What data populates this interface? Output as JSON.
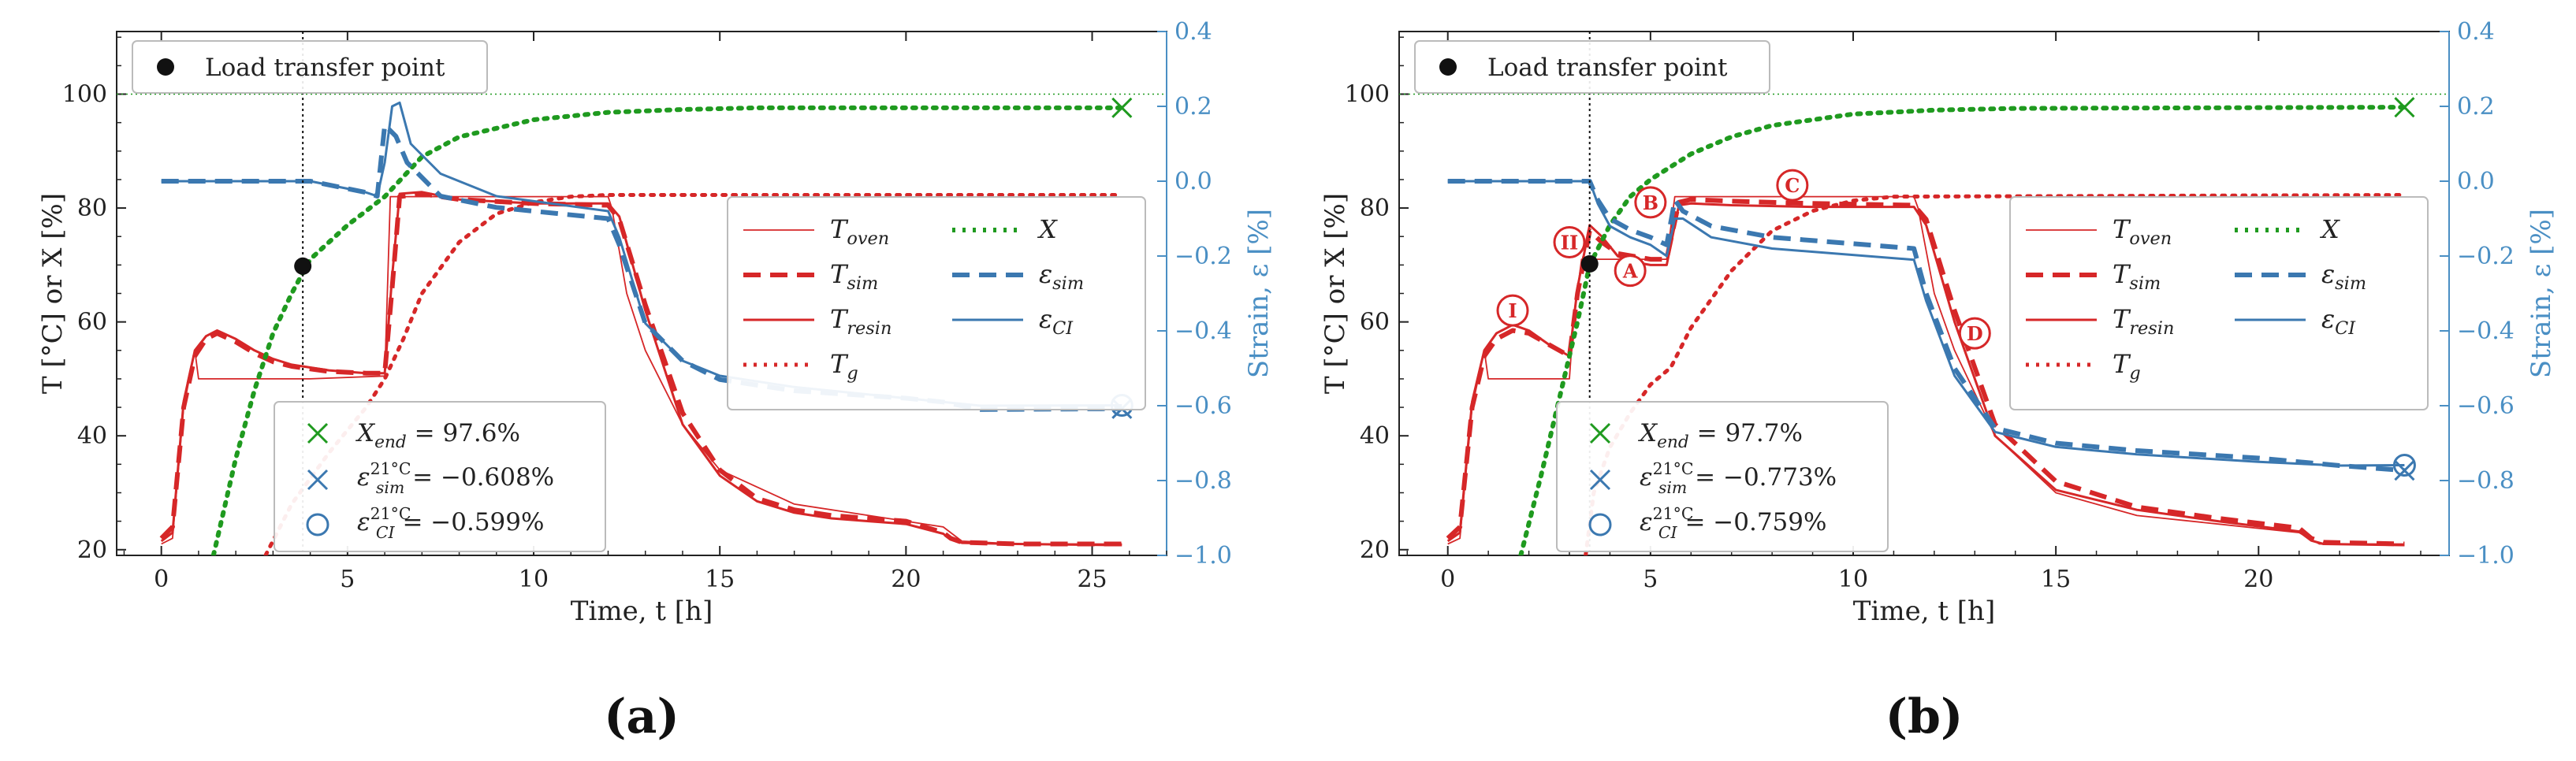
{
  "chart_data": [
    {
      "type": "line",
      "panel_label": "(a)",
      "xlabel": "Time, t [h]",
      "ylabel": "T [°C] or X [%]",
      "ylabel_right": "Strain, ε [%]",
      "xlim": [
        -1.2,
        27
      ],
      "ylim": [
        19,
        111
      ],
      "ylim_right": [
        -1.0,
        0.4
      ],
      "xticks": [
        "0",
        "5",
        "10",
        "15",
        "20",
        "25"
      ],
      "yticks": [
        "20",
        "40",
        "60",
        "80",
        "100"
      ],
      "yticks_right": [
        "−1.0",
        "−0.8",
        "−0.6",
        "−0.4",
        "−0.2",
        "0.0",
        "0.2",
        "0.4"
      ],
      "load_transfer_point": {
        "t": 3.8,
        "value": 69.8,
        "label": "Load transfer point"
      },
      "legend_right": {
        "T_oven": "T_oven",
        "T_sim": "T_sim",
        "T_resin": "T_resin",
        "T_g": "T_g",
        "X": "X",
        "eps_sim": "ε_sim",
        "eps_CI": "ε_CI"
      },
      "legend_bottom": {
        "X_end": "X_end = 97.6%",
        "eps_sim": "ε_sim^21°C = −0.608%",
        "eps_CI": "ε_CI^21°C = −0.599%"
      },
      "end_markers": {
        "X_end": 97.6,
        "eps_sim": -0.608,
        "eps_CI": -0.599,
        "t_end": 25.8
      },
      "series": [
        {
          "name": "T_oven",
          "axis": "left",
          "x": [
            0,
            0.3,
            0.6,
            0.9,
            1.0,
            2.0,
            4.0,
            6.0,
            6.15,
            6.3,
            8,
            10,
            12.0,
            12.1,
            12.5,
            13,
            14,
            15,
            17,
            20,
            21,
            21.5,
            23,
            25.8
          ],
          "y": [
            21,
            22,
            45,
            55,
            50,
            50,
            50,
            50.5,
            82,
            82,
            82,
            82,
            82,
            80,
            65,
            55,
            42,
            34,
            28,
            25,
            24,
            21.5,
            21,
            21
          ]
        },
        {
          "name": "T_sim",
          "axis": "left",
          "x": [
            0,
            0.3,
            0.6,
            0.9,
            1.2,
            1.5,
            2.0,
            2.5,
            3.0,
            3.5,
            4.5,
            5.5,
            6.0,
            6.2,
            6.4,
            7,
            8,
            10,
            12.0,
            12.3,
            13,
            14,
            15,
            16,
            17,
            18,
            19,
            20,
            21,
            21.2,
            21.5,
            23,
            25.8
          ],
          "y": [
            22,
            24,
            45,
            54,
            57,
            58,
            56.5,
            54.5,
            53,
            52.2,
            51.3,
            51,
            51,
            66,
            82,
            82.5,
            81.5,
            80.8,
            80.5,
            78,
            63,
            44,
            34,
            29,
            27,
            26,
            25.5,
            25,
            23,
            22,
            21.3,
            21,
            21
          ]
        },
        {
          "name": "T_resin",
          "axis": "left",
          "x": [
            0,
            0.3,
            0.6,
            0.9,
            1.2,
            1.5,
            2.0,
            2.5,
            3.0,
            3.5,
            4.5,
            5.5,
            6.0,
            6.2,
            6.4,
            7,
            8,
            10,
            12.0,
            12.3,
            13,
            14,
            15,
            16,
            17,
            18,
            19,
            20,
            21,
            21.2,
            21.5,
            23,
            25.8
          ],
          "y": [
            21.5,
            23,
            46,
            55,
            57.5,
            58.5,
            57,
            55,
            53.5,
            52.5,
            51.5,
            51,
            51,
            68,
            82.5,
            82.8,
            81.5,
            80.8,
            80.8,
            78.5,
            62,
            42,
            33,
            28.5,
            26.5,
            25.5,
            25,
            24.5,
            22.8,
            21.8,
            21.2,
            21,
            20.8
          ]
        },
        {
          "name": "T_g",
          "axis": "left",
          "x": [
            2.8,
            3.5,
            4.5,
            5.5,
            6.0,
            6.5,
            7.0,
            8.0,
            9.0,
            10.0,
            11.0,
            12.0,
            25.8
          ],
          "y": [
            19,
            28,
            37,
            45,
            50,
            57,
            65,
            74,
            79,
            81,
            82,
            82.3,
            82.3
          ]
        },
        {
          "name": "X",
          "axis": "left",
          "x": [
            1.4,
            2.0,
            2.5,
            3.0,
            3.5,
            4.0,
            5.0,
            6.0,
            7.0,
            8.0,
            10.0,
            12.0,
            14.0,
            16.0,
            25.8
          ],
          "y": [
            19,
            36,
            48,
            58,
            65,
            71,
            77,
            82,
            89,
            92.5,
            95.5,
            96.8,
            97.3,
            97.6,
            97.6
          ]
        },
        {
          "name": "eps_sim",
          "axis": "right",
          "x": [
            0,
            2,
            4,
            5,
            5.5,
            5.8,
            6.0,
            6.3,
            6.6,
            7.5,
            9,
            12.0,
            12.3,
            13,
            14,
            15,
            17,
            20,
            21,
            22,
            25.8
          ],
          "y": [
            0.0,
            0.0,
            0.0,
            -0.02,
            -0.03,
            -0.04,
            0.15,
            0.12,
            0.05,
            -0.04,
            -0.07,
            -0.1,
            -0.17,
            -0.38,
            -0.48,
            -0.53,
            -0.56,
            -0.58,
            -0.59,
            -0.61,
            -0.608
          ]
        },
        {
          "name": "eps_CI",
          "axis": "right",
          "x": [
            0,
            2,
            4,
            5,
            5.5,
            5.8,
            6.0,
            6.2,
            6.4,
            6.7,
            7.5,
            9,
            12.0,
            12.3,
            13,
            14,
            15,
            17,
            20,
            21,
            22,
            25.8
          ],
          "y": [
            0.0,
            0.0,
            0.0,
            -0.02,
            -0.03,
            -0.04,
            0.05,
            0.2,
            0.21,
            0.1,
            0.02,
            -0.04,
            -0.08,
            -0.15,
            -0.38,
            -0.48,
            -0.52,
            -0.55,
            -0.58,
            -0.59,
            -0.6,
            -0.599
          ]
        }
      ]
    },
    {
      "type": "line",
      "panel_label": "(b)",
      "xlabel": "Time, t [h]",
      "ylabel": "T [°C] or X [%]",
      "ylabel_right": "Strain, ε [%]",
      "xlim": [
        -1.2,
        24.7
      ],
      "ylim": [
        19,
        111
      ],
      "ylim_right": [
        -1.0,
        0.4
      ],
      "xticks": [
        "0",
        "5",
        "10",
        "15",
        "20"
      ],
      "yticks": [
        "20",
        "40",
        "60",
        "80",
        "100"
      ],
      "yticks_right": [
        "−1.0",
        "−0.8",
        "−0.6",
        "−0.4",
        "−0.2",
        "0.0",
        "0.2",
        "0.4"
      ],
      "load_transfer_point": {
        "t": 3.5,
        "value": 70.2,
        "label": "Load transfer point"
      },
      "legend_right": {
        "T_oven": "T_oven",
        "T_sim": "T_sim",
        "T_resin": "T_resin",
        "T_g": "T_g",
        "X": "X",
        "eps_sim": "ε_sim",
        "eps_CI": "ε_CI"
      },
      "legend_bottom": {
        "X_end": "X_end = 97.7%",
        "eps_sim": "ε_sim^21°C = −0.773%",
        "eps_CI": "ε_CI^21°C = −0.759%"
      },
      "end_markers": {
        "X_end": 97.7,
        "eps_sim": -0.773,
        "eps_CI": -0.759,
        "t_end": 23.6
      },
      "annotations": [
        {
          "label": "I",
          "t": 1.6,
          "value": 62
        },
        {
          "label": "II",
          "t": 3.0,
          "value": 74
        },
        {
          "label": "A",
          "t": 4.5,
          "value": 69
        },
        {
          "label": "B",
          "t": 5.0,
          "value": 81
        },
        {
          "label": "C",
          "t": 8.5,
          "value": 84
        },
        {
          "label": "D",
          "t": 13.0,
          "value": 58
        }
      ],
      "series": [
        {
          "name": "T_oven",
          "axis": "left",
          "x": [
            0,
            0.3,
            0.6,
            0.9,
            1.0,
            2.0,
            3.0,
            3.1,
            3.3,
            4.0,
            5.0,
            5.4,
            5.6,
            5.8,
            7,
            9,
            11.5,
            11.6,
            12,
            12.5,
            13.5,
            15,
            17,
            19,
            21,
            21.5,
            23.6
          ],
          "y": [
            21,
            22,
            45,
            55,
            50,
            50,
            50,
            60,
            71,
            71,
            71,
            71,
            82,
            82,
            82,
            82,
            82,
            80,
            65,
            55,
            40,
            30,
            26,
            24.5,
            23,
            21,
            21
          ]
        },
        {
          "name": "T_sim",
          "axis": "left",
          "x": [
            0,
            0.3,
            0.6,
            0.9,
            1.2,
            1.6,
            2.0,
            2.5,
            3.0,
            3.2,
            3.5,
            3.8,
            4.2,
            4.6,
            5.0,
            5.4,
            5.7,
            6.0,
            7,
            9,
            11.5,
            11.8,
            12.5,
            13.5,
            15,
            17,
            19,
            21,
            21.3,
            21.6,
            23.6
          ],
          "y": [
            22,
            24,
            45,
            54,
            57,
            58.5,
            58,
            56,
            54,
            65,
            76,
            74,
            72,
            71.5,
            71,
            71,
            81,
            81.5,
            81.2,
            80.8,
            80.5,
            78,
            62,
            42,
            32,
            27.5,
            25.5,
            23.8,
            22,
            21.3,
            21
          ]
        },
        {
          "name": "T_resin",
          "axis": "left",
          "x": [
            0,
            0.3,
            0.6,
            0.9,
            1.2,
            1.6,
            2.0,
            2.5,
            3.0,
            3.2,
            3.5,
            3.8,
            4.2,
            4.6,
            5.0,
            5.4,
            5.7,
            6.0,
            7,
            9,
            11.5,
            11.8,
            12.5,
            13.5,
            15,
            17,
            19,
            21,
            21.3,
            21.6,
            23.6
          ],
          "y": [
            21.5,
            23,
            46,
            55,
            58,
            59.5,
            58.5,
            56,
            54,
            66,
            77,
            75,
            71.5,
            70.5,
            70,
            70,
            80.5,
            80.8,
            80.5,
            80.2,
            80.2,
            77,
            60,
            40,
            30.5,
            27,
            25,
            23.2,
            21.6,
            21,
            20.8
          ]
        },
        {
          "name": "T_g",
          "axis": "left",
          "x": [
            3.4,
            3.6,
            4.0,
            4.5,
            5.0,
            5.5,
            6.0,
            7.0,
            8.0,
            9.0,
            10.0,
            11.0,
            23.6
          ],
          "y": [
            19,
            30,
            38,
            44,
            49,
            52,
            59,
            69,
            76,
            79.5,
            81.3,
            82,
            82.3
          ]
        },
        {
          "name": "X",
          "axis": "left",
          "x": [
            1.8,
            2.3,
            2.8,
            3.2,
            3.5,
            4.0,
            4.5,
            5.0,
            6.0,
            7.0,
            8.0,
            10.0,
            12.0,
            14.0,
            23.6
          ],
          "y": [
            19,
            33,
            48,
            60,
            70,
            77,
            82,
            85,
            89.5,
            92.5,
            94.5,
            96.5,
            97.2,
            97.5,
            97.7
          ]
        },
        {
          "name": "eps_sim",
          "axis": "right",
          "x": [
            0,
            2,
            3.5,
            3.7,
            4.0,
            4.5,
            5.0,
            5.4,
            5.6,
            5.8,
            6.5,
            8,
            11.5,
            11.8,
            12.5,
            13.5,
            15,
            17,
            20,
            22,
            23.6
          ],
          "y": [
            0.0,
            0.0,
            0.0,
            -0.05,
            -0.1,
            -0.13,
            -0.15,
            -0.17,
            -0.05,
            -0.08,
            -0.12,
            -0.15,
            -0.18,
            -0.3,
            -0.5,
            -0.66,
            -0.7,
            -0.72,
            -0.74,
            -0.76,
            -0.773
          ]
        },
        {
          "name": "eps_CI",
          "axis": "right",
          "x": [
            0,
            2,
            3.5,
            3.7,
            4.0,
            4.5,
            5.0,
            5.4,
            5.6,
            5.8,
            6.5,
            8,
            11.5,
            11.8,
            12.5,
            13.5,
            15,
            17,
            20,
            22,
            23.6
          ],
          "y": [
            0.0,
            0.0,
            0.0,
            -0.06,
            -0.12,
            -0.15,
            -0.17,
            -0.2,
            -0.1,
            -0.1,
            -0.15,
            -0.18,
            -0.21,
            -0.32,
            -0.52,
            -0.67,
            -0.71,
            -0.73,
            -0.75,
            -0.76,
            -0.759
          ]
        }
      ]
    }
  ]
}
